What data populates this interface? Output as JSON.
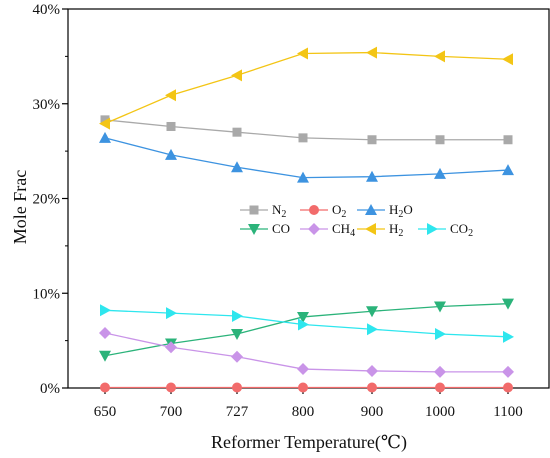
{
  "chart_data": {
    "type": "line",
    "xlabel": "Reformer Temperature(℃)",
    "ylabel": "Mole Frac",
    "categories": [
      "650",
      "700",
      "727",
      "800",
      "900",
      "1000",
      "1100"
    ],
    "ylim": [
      0,
      40
    ],
    "yticks": [
      0,
      10,
      20,
      30,
      40
    ],
    "ytick_labels": [
      "0%",
      "10%",
      "20%",
      "30%",
      "40%"
    ],
    "grid": false,
    "legend_placement": "center-left",
    "series": [
      {
        "name": "N2",
        "label_main": "N",
        "label_sub": "2",
        "color": "#a9a9a9",
        "marker": "square",
        "values": [
          28.3,
          27.6,
          27.0,
          26.4,
          26.2,
          26.2,
          26.2
        ]
      },
      {
        "name": "O2",
        "label_main": "O",
        "label_sub": "2",
        "color": "#f26b6b",
        "marker": "circle",
        "values": [
          0.05,
          0.05,
          0.05,
          0.05,
          0.05,
          0.05,
          0.05
        ]
      },
      {
        "name": "H2O",
        "label_main": "H",
        "label_sub": "2",
        "label_tail": "O",
        "color": "#3d93e0",
        "marker": "triangle-up",
        "values": [
          26.4,
          24.6,
          23.3,
          22.2,
          22.3,
          22.6,
          23.0
        ]
      },
      {
        "name": "CO",
        "label_main": "CO",
        "label_sub": "",
        "color": "#2bb37a",
        "marker": "triangle-down",
        "values": [
          3.4,
          4.7,
          5.7,
          7.5,
          8.1,
          8.6,
          8.9
        ]
      },
      {
        "name": "CH4",
        "label_main": "CH",
        "label_sub": "4",
        "color": "#c994e8",
        "marker": "diamond",
        "values": [
          5.8,
          4.3,
          3.3,
          2.0,
          1.8,
          1.7,
          1.7
        ]
      },
      {
        "name": "H2",
        "label_main": "H",
        "label_sub": "2",
        "color": "#f3c515",
        "marker": "triangle-left",
        "values": [
          27.9,
          30.9,
          33.0,
          35.3,
          35.4,
          35.0,
          34.7
        ]
      },
      {
        "name": "CO2",
        "label_main": "CO",
        "label_sub": "2",
        "color": "#2ee6ee",
        "marker": "triangle-right",
        "values": [
          8.2,
          7.9,
          7.6,
          6.7,
          6.2,
          5.7,
          5.4
        ]
      }
    ]
  }
}
